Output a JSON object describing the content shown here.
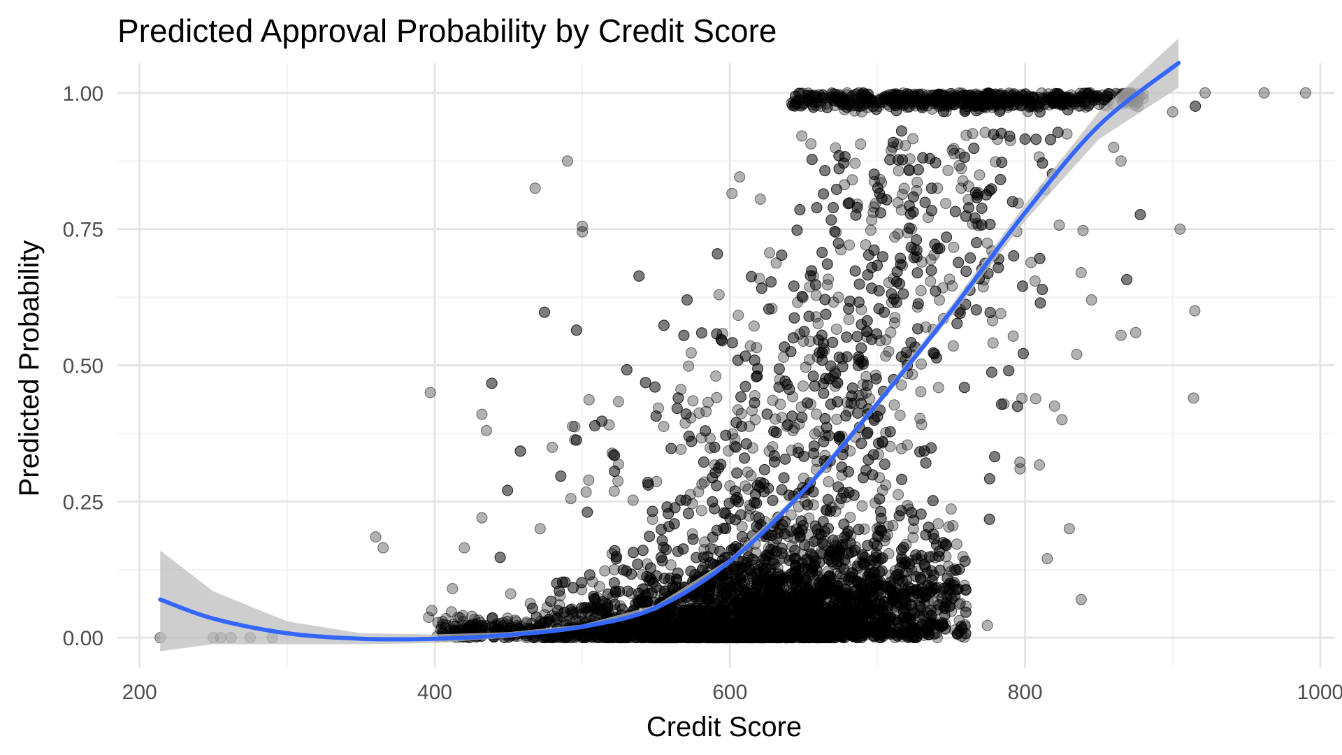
{
  "chart_data": {
    "type": "scatter",
    "title": "Predicted Approval Probability by Credit Score",
    "xlabel": "Credit Score",
    "ylabel": "Predicted Probability",
    "xlim": [
      185,
      1010
    ],
    "ylim": [
      -0.055,
      1.055
    ],
    "x_ticks": [
      200,
      400,
      600,
      800,
      1000
    ],
    "x_tick_labels": [
      "200",
      "400",
      "600",
      "800",
      "1000"
    ],
    "y_ticks": [
      0,
      0.25,
      0.5,
      0.75,
      1.0
    ],
    "y_tick_labels": [
      "0.00",
      "0.25",
      "0.50",
      "0.75",
      "1.00"
    ],
    "grid": true,
    "point_color": "#000000",
    "point_alpha": 0.3,
    "smooth_color": "#3366FF",
    "ribbon_color": "#bdbdbd",
    "smooth_line": {
      "x": [
        214,
        250,
        300,
        350,
        400,
        450,
        500,
        550,
        600,
        650,
        700,
        750,
        800,
        850,
        904
      ],
      "y": [
        0.07,
        0.035,
        0.008,
        -0.002,
        -0.002,
        0.005,
        0.02,
        0.055,
        0.14,
        0.27,
        0.43,
        0.6,
        0.78,
        0.94,
        1.055
      ],
      "ci_low": [
        -0.025,
        -0.012,
        -0.012,
        -0.012,
        -0.01,
        0.0,
        0.016,
        0.05,
        0.135,
        0.265,
        0.423,
        0.59,
        0.765,
        0.915,
        1.01
      ],
      "ci_high": [
        0.16,
        0.085,
        0.03,
        0.008,
        0.006,
        0.01,
        0.024,
        0.06,
        0.145,
        0.275,
        0.437,
        0.61,
        0.795,
        0.965,
        1.1
      ]
    },
    "outlier_points": [
      {
        "x": 214,
        "y": 0.0
      },
      {
        "x": 250,
        "y": 0.0
      },
      {
        "x": 255,
        "y": 0.0
      },
      {
        "x": 262,
        "y": 0.0
      },
      {
        "x": 275,
        "y": 0.0
      },
      {
        "x": 290,
        "y": 0.0
      },
      {
        "x": 360,
        "y": 0.185
      },
      {
        "x": 365,
        "y": 0.165
      },
      {
        "x": 397,
        "y": 0.45
      },
      {
        "x": 432,
        "y": 0.41
      },
      {
        "x": 435,
        "y": 0.38
      },
      {
        "x": 432,
        "y": 0.22
      },
      {
        "x": 420,
        "y": 0.165
      },
      {
        "x": 468,
        "y": 0.825
      },
      {
        "x": 490,
        "y": 0.875
      },
      {
        "x": 500,
        "y": 0.755
      },
      {
        "x": 500,
        "y": 0.745
      },
      {
        "x": 398,
        "y": 0.05
      },
      {
        "x": 412,
        "y": 0.09
      },
      {
        "x": 875,
        "y": 0.56
      },
      {
        "x": 905,
        "y": 0.75
      },
      {
        "x": 915,
        "y": 0.6
      },
      {
        "x": 900,
        "y": 0.965
      },
      {
        "x": 922,
        "y": 1.0
      },
      {
        "x": 962,
        "y": 1.0
      },
      {
        "x": 990,
        "y": 1.0
      },
      {
        "x": 838,
        "y": 0.07
      },
      {
        "x": 830,
        "y": 0.2
      },
      {
        "x": 815,
        "y": 0.145
      },
      {
        "x": 820,
        "y": 0.425
      },
      {
        "x": 825,
        "y": 0.4
      },
      {
        "x": 838,
        "y": 0.67
      },
      {
        "x": 845,
        "y": 0.62
      },
      {
        "x": 835,
        "y": 0.52
      },
      {
        "x": 865,
        "y": 0.555
      },
      {
        "x": 865,
        "y": 0.875
      },
      {
        "x": 860,
        "y": 0.9
      },
      {
        "x": 880,
        "y": 0.99
      },
      {
        "x": 870,
        "y": 1.0
      }
    ],
    "density_summary": "approximately 6000 points with credit scores concentrated between 450 and 800; most probabilities near 0.00 for scores below 650 and spread across 0.00-1.00 for scores 550-850, with a dense band at 1.00 for scores 640-880"
  }
}
